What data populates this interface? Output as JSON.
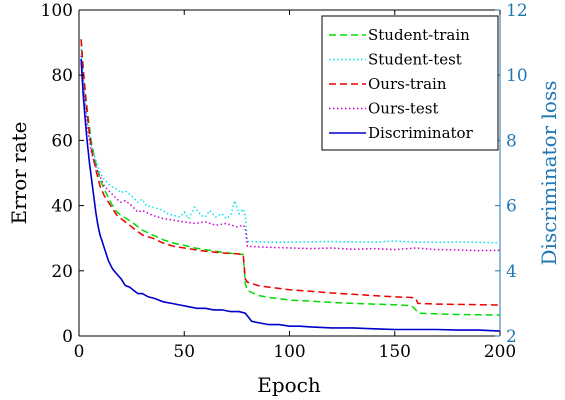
{
  "chart_data": {
    "type": "line",
    "xlabel": "Epoch",
    "ylabel": "Error rate",
    "y2label": "Discriminator loss",
    "xlim": [
      0,
      200
    ],
    "ylim": [
      0,
      100
    ],
    "y2lim": [
      2,
      12
    ],
    "xticks": [
      0,
      50,
      100,
      150,
      200
    ],
    "yticks": [
      0,
      20,
      40,
      60,
      80,
      100
    ],
    "y2ticks": [
      2,
      4,
      6,
      8,
      10,
      12
    ],
    "grid": false,
    "legend_position": "top-right",
    "series": [
      {
        "name": "Student-train",
        "axis": "left",
        "style": "dashed",
        "color": "#00dd00",
        "x": [
          1,
          2,
          3,
          4,
          5,
          6,
          8,
          10,
          12,
          15,
          18,
          20,
          25,
          30,
          35,
          40,
          45,
          50,
          55,
          60,
          65,
          70,
          75,
          78,
          79,
          80,
          85,
          90,
          95,
          100,
          110,
          120,
          130,
          140,
          150,
          158,
          160,
          161,
          170,
          180,
          190,
          200
        ],
        "values": [
          91,
          82,
          75,
          69,
          64,
          59,
          53,
          48,
          45,
          41,
          38,
          37,
          35,
          32.5,
          31,
          29.5,
          28.5,
          27.8,
          27,
          26.5,
          26,
          25.5,
          25.2,
          25,
          16,
          14,
          12.5,
          11.8,
          11.5,
          11,
          10.7,
          10.3,
          10,
          9.8,
          9.6,
          9.3,
          8,
          7,
          6.8,
          6.6,
          6.5,
          6.4
        ]
      },
      {
        "name": "Student-test",
        "axis": "left",
        "style": "dotted",
        "color": "#00e5ee",
        "x": [
          1,
          2,
          3,
          4,
          5,
          6,
          8,
          10,
          12,
          15,
          18,
          20,
          22,
          25,
          28,
          30,
          32,
          35,
          38,
          40,
          42,
          45,
          48,
          50,
          52,
          55,
          58,
          60,
          62,
          65,
          68,
          70,
          72,
          74,
          76,
          78,
          79,
          80,
          90,
          100,
          110,
          120,
          130,
          140,
          150,
          160,
          170,
          180,
          190,
          200
        ],
        "values": [
          88,
          80,
          72,
          66,
          62,
          58,
          54,
          50,
          48,
          46,
          45,
          44,
          44.5,
          43,
          41,
          42,
          40,
          39.5,
          39,
          38.5,
          37.5,
          37,
          36.5,
          38,
          36,
          39.5,
          37,
          36.5,
          38.5,
          36.5,
          37.5,
          36,
          37,
          41.5,
          37.5,
          39,
          37,
          29,
          28.8,
          28.8,
          28.9,
          29,
          28.9,
          28.8,
          29.1,
          28.8,
          28.7,
          28.8,
          28.7,
          28.6
        ]
      },
      {
        "name": "Ours-train",
        "axis": "left",
        "style": "dashed",
        "color": "#ee0000",
        "x": [
          1,
          2,
          3,
          4,
          5,
          6,
          8,
          10,
          12,
          15,
          18,
          20,
          25,
          30,
          35,
          40,
          45,
          50,
          55,
          60,
          65,
          70,
          75,
          78,
          79,
          80,
          85,
          90,
          95,
          100,
          110,
          120,
          130,
          140,
          150,
          158,
          160,
          161,
          170,
          180,
          190,
          200
        ],
        "values": [
          91,
          82,
          74,
          68,
          62,
          57,
          51,
          46,
          43,
          40,
          37,
          36,
          33.5,
          31,
          30,
          28.5,
          27.5,
          27,
          26.5,
          26,
          25.7,
          25.4,
          25.2,
          25,
          17.5,
          16.5,
          15.5,
          15,
          14.6,
          14.2,
          13.7,
          13.2,
          12.8,
          12.4,
          12,
          11.8,
          11.5,
          10,
          9.8,
          9.7,
          9.6,
          9.5
        ]
      },
      {
        "name": "Ours-test",
        "axis": "left",
        "style": "dotted",
        "color": "#cc00cc",
        "x": [
          1,
          2,
          3,
          4,
          5,
          6,
          8,
          10,
          12,
          15,
          18,
          20,
          22,
          25,
          28,
          30,
          35,
          40,
          45,
          50,
          55,
          60,
          65,
          70,
          75,
          78,
          79,
          80,
          90,
          100,
          110,
          120,
          130,
          140,
          150,
          160,
          170,
          180,
          190,
          200
        ],
        "values": [
          86,
          78,
          70,
          64,
          60,
          56,
          52,
          49,
          46,
          44,
          42,
          41,
          41.5,
          40,
          38,
          38.5,
          37,
          36,
          35.5,
          35,
          34.5,
          35,
          34,
          34.5,
          33.5,
          34,
          33,
          27.5,
          27.2,
          27,
          26.8,
          27,
          26.6,
          26.8,
          26.5,
          27,
          26.5,
          26.4,
          26.2,
          26.3
        ]
      },
      {
        "name": "Discriminator",
        "axis": "right",
        "style": "solid",
        "color": "#0000cc",
        "x": [
          1,
          2,
          3,
          4,
          5,
          6,
          7,
          8,
          9,
          10,
          12,
          14,
          16,
          18,
          20,
          22,
          24,
          26,
          28,
          30,
          33,
          36,
          40,
          44,
          48,
          52,
          56,
          60,
          64,
          68,
          72,
          76,
          79,
          82,
          86,
          90,
          95,
          100,
          105,
          110,
          120,
          130,
          140,
          150,
          160,
          170,
          180,
          190,
          200
        ],
        "values": [
          10.5,
          9.4,
          8.6,
          7.9,
          7.3,
          6.8,
          6.3,
          5.8,
          5.4,
          5.1,
          4.7,
          4.3,
          4.05,
          3.9,
          3.75,
          3.55,
          3.5,
          3.4,
          3.3,
          3.3,
          3.2,
          3.15,
          3.05,
          3,
          2.95,
          2.9,
          2.85,
          2.85,
          2.8,
          2.8,
          2.75,
          2.75,
          2.7,
          2.45,
          2.4,
          2.35,
          2.35,
          2.3,
          2.3,
          2.28,
          2.25,
          2.25,
          2.22,
          2.2,
          2.2,
          2.2,
          2.18,
          2.18,
          2.15
        ]
      }
    ]
  }
}
